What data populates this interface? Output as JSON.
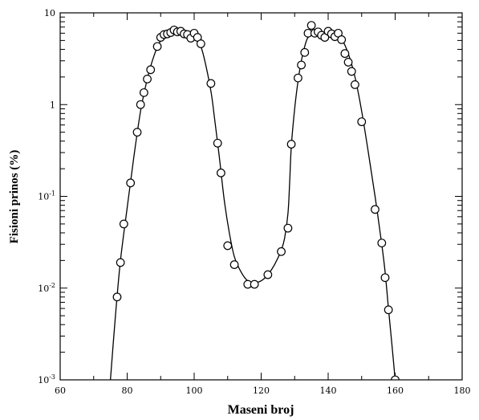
{
  "chart_data": {
    "type": "scatter",
    "xlabel": "Maseni broj",
    "ylabel": "Fisioni prinos (%)",
    "xlim": [
      60,
      180
    ],
    "ylim": [
      0.001,
      10
    ],
    "y_scale": "log",
    "x_ticks": [
      {
        "value": 60,
        "label": "60"
      },
      {
        "value": 80,
        "label": "80"
      },
      {
        "value": 100,
        "label": "100"
      },
      {
        "value": 120,
        "label": "120"
      },
      {
        "value": 140,
        "label": "140"
      },
      {
        "value": 160,
        "label": "160"
      },
      {
        "value": 180,
        "label": "180"
      }
    ],
    "y_ticks": [
      {
        "value": 0.001,
        "base": "10",
        "exp": "-3"
      },
      {
        "value": 0.01,
        "base": "10",
        "exp": "-2"
      },
      {
        "value": 0.1,
        "base": "10",
        "exp": "-1"
      },
      {
        "value": 1,
        "base": "1",
        "exp": ""
      },
      {
        "value": 10,
        "base": "10",
        "exp": ""
      }
    ],
    "series": [
      {
        "marker": "open-circle",
        "points": [
          [
            77,
            0.008
          ],
          [
            78,
            0.019
          ],
          [
            79,
            0.05
          ],
          [
            81,
            0.14
          ],
          [
            83,
            0.5
          ],
          [
            84,
            1.0
          ],
          [
            85,
            1.35
          ],
          [
            86,
            1.9
          ],
          [
            87,
            2.4
          ],
          [
            89,
            4.3
          ],
          [
            90,
            5.4
          ],
          [
            91,
            5.8
          ],
          [
            92,
            5.9
          ],
          [
            93,
            6.1
          ],
          [
            94,
            6.5
          ],
          [
            95,
            6.2
          ],
          [
            96,
            6.3
          ],
          [
            97,
            5.9
          ],
          [
            98,
            5.8
          ],
          [
            99,
            5.3
          ],
          [
            100,
            6.0
          ],
          [
            101,
            5.4
          ],
          [
            102,
            4.6
          ],
          [
            105,
            1.7
          ],
          [
            107,
            0.38
          ],
          [
            108,
            0.18
          ],
          [
            110,
            0.029
          ],
          [
            112,
            0.018
          ],
          [
            116,
            0.011
          ],
          [
            118,
            0.011
          ],
          [
            122,
            0.014
          ],
          [
            126,
            0.025
          ],
          [
            128,
            0.045
          ],
          [
            129,
            0.37
          ],
          [
            131,
            1.95
          ],
          [
            132,
            2.7
          ],
          [
            133,
            3.7
          ],
          [
            134,
            6.0
          ],
          [
            135,
            7.3
          ],
          [
            136,
            6.0
          ],
          [
            137,
            6.2
          ],
          [
            138,
            5.7
          ],
          [
            139,
            5.4
          ],
          [
            140,
            6.3
          ],
          [
            141,
            5.9
          ],
          [
            142,
            5.5
          ],
          [
            143,
            6.0
          ],
          [
            144,
            5.1
          ],
          [
            145,
            3.6
          ],
          [
            146,
            2.9
          ],
          [
            147,
            2.3
          ],
          [
            148,
            1.65
          ],
          [
            150,
            0.65
          ],
          [
            154,
            0.072
          ],
          [
            156,
            0.031
          ],
          [
            157,
            0.013
          ],
          [
            158,
            0.0058
          ],
          [
            160,
            0.001
          ]
        ]
      }
    ],
    "fit_curve": [
      [
        75,
        0.001
      ],
      [
        76.5,
        0.005
      ],
      [
        78,
        0.02
      ],
      [
        80,
        0.075
      ],
      [
        82,
        0.27
      ],
      [
        84,
        0.85
      ],
      [
        86,
        1.9
      ],
      [
        88,
        3.4
      ],
      [
        90,
        5.0
      ],
      [
        92,
        5.9
      ],
      [
        94,
        6.2
      ],
      [
        96,
        6.2
      ],
      [
        98,
        5.9
      ],
      [
        100,
        5.6
      ],
      [
        101.5,
        4.8
      ],
      [
        103,
        3.2
      ],
      [
        105,
        1.4
      ],
      [
        106,
        0.75
      ],
      [
        107.5,
        0.27
      ],
      [
        109,
        0.09
      ],
      [
        110.5,
        0.04
      ],
      [
        112,
        0.022
      ],
      [
        114,
        0.015
      ],
      [
        116,
        0.012
      ],
      [
        118,
        0.0115
      ],
      [
        120,
        0.012
      ],
      [
        122,
        0.014
      ],
      [
        124,
        0.018
      ],
      [
        126,
        0.026
      ],
      [
        127,
        0.035
      ],
      [
        128,
        0.065
      ],
      [
        128.5,
        0.14
      ],
      [
        129,
        0.35
      ],
      [
        130,
        0.9
      ],
      [
        131,
        1.8
      ],
      [
        132,
        3.0
      ],
      [
        133,
        4.3
      ],
      [
        134,
        5.4
      ],
      [
        136,
        6.0
      ],
      [
        138,
        6.1
      ],
      [
        140,
        6.0
      ],
      [
        142,
        5.8
      ],
      [
        144,
        5.2
      ],
      [
        146,
        3.6
      ],
      [
        148,
        2.0
      ],
      [
        150,
        0.85
      ],
      [
        152,
        0.3
      ],
      [
        154,
        0.1
      ],
      [
        156,
        0.03
      ],
      [
        157,
        0.015
      ],
      [
        158,
        0.006
      ],
      [
        159,
        0.0025
      ],
      [
        160,
        0.001
      ]
    ]
  }
}
